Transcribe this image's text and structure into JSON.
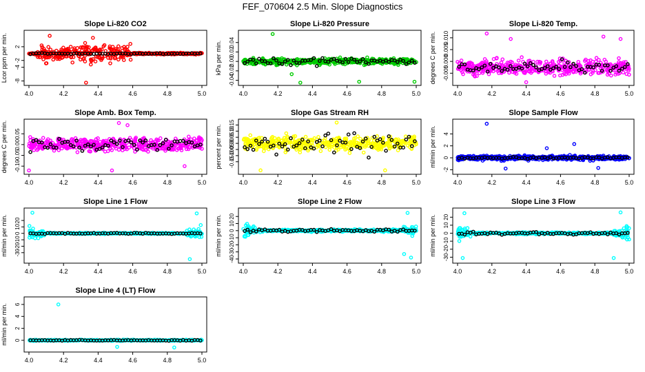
{
  "page_title": "FEF_070604  2.5 Min. Slope Diagnostics",
  "chart_data": [
    {
      "type": "scatter",
      "title": "Slope Li-820 CO2",
      "ylabel": "Lcor ppm per min.",
      "xlim": [
        4.0,
        5.0
      ],
      "ylim": [
        -8.5,
        6
      ],
      "xticks": [
        "4.0",
        "4.2",
        "4.4",
        "4.6",
        "4.8",
        "5.0"
      ],
      "yticks": [
        {
          "v": 2,
          "label": "2"
        },
        {
          "v": -2,
          "label": "-2"
        },
        {
          "v": -4,
          "label": "-4"
        },
        {
          "v": -8,
          "label": "-8"
        }
      ],
      "color": "#ff0000",
      "spread_base": 0.3,
      "spread_mid": 3.0,
      "mid": [
        4.05,
        4.6
      ],
      "reference_level": 0,
      "reference_spread": 0.1,
      "outliers": [
        [
          4.33,
          -8.5
        ],
        [
          4.12,
          5.2
        ],
        [
          4.37,
          4.6
        ]
      ]
    },
    {
      "type": "scatter",
      "title": "Slope Li-820 Pressure",
      "ylabel": "kPa per min.",
      "xlim": [
        4.0,
        5.0
      ],
      "ylim": [
        -0.045,
        0.06
      ],
      "xticks": [
        "4.0",
        "4.2",
        "4.4",
        "4.6",
        "4.8",
        "5.0"
      ],
      "yticks": [
        {
          "v": 0.04,
          "label": "0.04"
        },
        {
          "v": 0.02,
          "label": "0.02"
        },
        {
          "v": 0.0,
          "label": "0.00"
        },
        {
          "v": -0.02,
          "label": "-0.02"
        },
        {
          "v": -0.04,
          "label": "-0.04"
        }
      ],
      "color": "#00cc00",
      "spread_base": 0.008,
      "spread_mid": 0.008,
      "mid": [
        4.0,
        5.0
      ],
      "reference_level": 0,
      "reference_spread": 0.005,
      "outliers": [
        [
          4.17,
          0.058
        ],
        [
          4.33,
          -0.045
        ],
        [
          4.67,
          -0.043
        ],
        [
          4.99,
          -0.043
        ],
        [
          4.28,
          -0.027
        ]
      ]
    },
    {
      "type": "scatter",
      "title": "Slope Li-820 Temp.",
      "ylabel": "degrees C per min.",
      "xlim": [
        4.0,
        5.0
      ],
      "ylim": [
        -0.009,
        0.012
      ],
      "xticks": [
        "4.0",
        "4.2",
        "4.4",
        "4.6",
        "4.8",
        "5.0"
      ],
      "yticks": [
        {
          "v": 0.01,
          "label": "0.010"
        },
        {
          "v": 0.005,
          "label": "0.005"
        },
        {
          "v": 0.0,
          "label": "0.000"
        },
        {
          "v": -0.005,
          "label": "-0.005"
        }
      ],
      "color": "#ff00ff",
      "spread_base": 0.004,
      "spread_mid": 0.004,
      "mid": [
        4.0,
        5.0
      ],
      "reference_level": -0.0025,
      "reference_spread": 0.0015,
      "outliers": [
        [
          4.17,
          0.0118
        ],
        [
          4.31,
          0.0095
        ],
        [
          4.85,
          0.0105
        ],
        [
          4.95,
          0.0095
        ],
        [
          4.4,
          -0.0088
        ]
      ]
    },
    {
      "type": "scatter",
      "title": "Slope Amb. Box Temp.",
      "ylabel": "degrees C per min.",
      "xlim": [
        4.0,
        5.0
      ],
      "ylim": [
        -0.125,
        0.105
      ],
      "xticks": [
        "4.0",
        "4.2",
        "4.4",
        "4.6",
        "4.8",
        "5.0"
      ],
      "yticks": [
        {
          "v": 0.05,
          "label": "0.05"
        },
        {
          "v": 0.0,
          "label": "0.00"
        },
        {
          "v": -0.05,
          "label": "-0.05"
        },
        {
          "v": -0.1,
          "label": "-0.10"
        }
      ],
      "color": "#ff00ff",
      "spread_base": 0.04,
      "spread_mid": 0.04,
      "mid": [
        4.0,
        5.0
      ],
      "reference_level": 0.0,
      "reference_spread": 0.025,
      "outliers": [
        [
          4.52,
          0.1
        ],
        [
          4.57,
          0.09
        ],
        [
          4.0,
          -0.12
        ],
        [
          4.48,
          -0.12
        ],
        [
          4.9,
          -0.1
        ]
      ]
    },
    {
      "type": "scatter",
      "title": "Slope Gas Stream RH",
      "ylabel": "percent per min.",
      "xlim": [
        4.0,
        5.0
      ],
      "ylim": [
        -0.23,
        0.175
      ],
      "xticks": [
        "4.0",
        "4.2",
        "4.4",
        "4.6",
        "4.8",
        "5.0"
      ],
      "yticks": [
        {
          "v": 0.15,
          "label": "0.15"
        },
        {
          "v": 0.1,
          "label": "0.10"
        },
        {
          "v": 0.05,
          "label": "0.05"
        },
        {
          "v": 0.0,
          "label": "0.00"
        },
        {
          "v": -0.05,
          "label": "-0.05"
        },
        {
          "v": -0.1,
          "label": "-0.10"
        },
        {
          "v": -0.15,
          "label": "-0.15"
        }
      ],
      "color": "#ffff00",
      "spread_base": 0.07,
      "spread_mid": 0.07,
      "mid": [
        4.0,
        5.0
      ],
      "reference_level": 0.0,
      "reference_spread": 0.06,
      "outliers": [
        [
          4.1,
          -0.22
        ],
        [
          4.82,
          -0.22
        ],
        [
          4.54,
          0.17
        ]
      ]
    },
    {
      "type": "scatter",
      "title": "Slope Sample Flow",
      "ylabel": "ml/min per min.",
      "xlim": [
        4.0,
        5.0
      ],
      "ylim": [
        -2.3,
        6
      ],
      "xticks": [
        "4.0",
        "4.2",
        "4.4",
        "4.6",
        "4.8",
        "5.0"
      ],
      "yticks": [
        {
          "v": 4,
          "label": "4"
        },
        {
          "v": 2,
          "label": "2"
        },
        {
          "v": 0,
          "label": "0"
        },
        {
          "v": -2,
          "label": "-2"
        }
      ],
      "color": "#0000ff",
      "spread_base": 0.5,
      "spread_mid": 0.5,
      "mid": [
        4.0,
        5.0
      ],
      "reference_level": 0,
      "reference_spread": 0.1,
      "outliers": [
        [
          4.17,
          5.7
        ],
        [
          4.28,
          -1.8
        ],
        [
          4.52,
          1.6
        ],
        [
          4.82,
          -1.7
        ],
        [
          4.68,
          2.3
        ]
      ]
    },
    {
      "type": "scatter",
      "title": "Slope Line 1 Flow",
      "ylabel": "ml/min per min.",
      "xlim": [
        4.0,
        5.0
      ],
      "ylim": [
        -42,
        35
      ],
      "xticks": [
        "4.0",
        "4.2",
        "4.4",
        "4.6",
        "4.8",
        "5.0"
      ],
      "yticks": [
        {
          "v": 20,
          "label": "20"
        },
        {
          "v": 10,
          "label": "10"
        },
        {
          "v": 0,
          "label": "0"
        },
        {
          "v": -10,
          "label": "-10"
        },
        {
          "v": -20,
          "label": "-20"
        },
        {
          "v": -30,
          "label": "-30"
        }
      ],
      "color": "#00ffff",
      "edge_spread": 15,
      "edge_width": 0.09,
      "spread_base": 1.2,
      "reference_level": 0,
      "reference_spread": 0.6,
      "outliers": [
        [
          4.02,
          32
        ],
        [
          4.93,
          -40
        ],
        [
          4.97,
          31
        ]
      ]
    },
    {
      "type": "scatter",
      "title": "Slope Line 2 Flow",
      "ylabel": "ml/min per min.",
      "xlim": [
        4.0,
        5.0
      ],
      "ylim": [
        -42,
        28
      ],
      "xticks": [
        "4.0",
        "4.2",
        "4.4",
        "4.6",
        "4.8",
        "5.0"
      ],
      "yticks": [
        {
          "v": 20,
          "label": "20"
        },
        {
          "v": 10,
          "label": "10"
        },
        {
          "v": 0,
          "label": "0"
        },
        {
          "v": -10,
          "label": "-10"
        },
        {
          "v": -20,
          "label": "-20"
        },
        {
          "v": -30,
          "label": "-30"
        },
        {
          "v": -40,
          "label": "-40"
        }
      ],
      "color": "#00ffff",
      "edge_spread": 12,
      "edge_width": 0.08,
      "spread_base": 2,
      "reference_level": 0,
      "reference_spread": 1.5,
      "outliers": [
        [
          4.97,
          -38
        ],
        [
          4.95,
          25
        ],
        [
          4.93,
          -33
        ]
      ]
    },
    {
      "type": "scatter",
      "title": "Slope Line 3 Flow",
      "ylabel": "ml/min per min.",
      "xlim": [
        4.0,
        5.0
      ],
      "ylim": [
        -34,
        28
      ],
      "xticks": [
        "4.0",
        "4.2",
        "4.4",
        "4.6",
        "4.8",
        "5.0"
      ],
      "yticks": [
        {
          "v": 20,
          "label": "20"
        },
        {
          "v": 10,
          "label": "10"
        },
        {
          "v": 0,
          "label": "0"
        },
        {
          "v": -10,
          "label": "-10"
        },
        {
          "v": -20,
          "label": "-20"
        },
        {
          "v": -30,
          "label": "-30"
        }
      ],
      "color": "#00ffff",
      "edge_spread": 12,
      "edge_width": 0.09,
      "spread_base": 1.5,
      "reference_level": 0,
      "reference_spread": 1.2,
      "outliers": [
        [
          4.03,
          -31
        ],
        [
          4.04,
          25
        ],
        [
          4.91,
          -31
        ],
        [
          4.95,
          26
        ]
      ]
    },
    {
      "type": "scatter",
      "title": "Slope Line 4 (LT) Flow",
      "ylabel": "ml/min per min.",
      "xlim": [
        4.0,
        5.0
      ],
      "ylim": [
        -1.5,
        6.8
      ],
      "xticks": [
        "4.0",
        "4.2",
        "4.4",
        "4.6",
        "4.8",
        "5.0"
      ],
      "yticks": [
        {
          "v": 6,
          "label": "6"
        },
        {
          "v": 4,
          "label": "4"
        },
        {
          "v": 2,
          "label": "2"
        },
        {
          "v": 0,
          "label": "0"
        }
      ],
      "color": "#00ffff",
      "spread_base": 0.12,
      "spread_mid": 0.12,
      "mid": [
        4.0,
        5.0
      ],
      "reference_level": 0,
      "reference_spread": 0.05,
      "outliers": [
        [
          4.17,
          6.0
        ],
        [
          4.84,
          -1.2
        ],
        [
          4.51,
          -1.1
        ]
      ]
    }
  ]
}
